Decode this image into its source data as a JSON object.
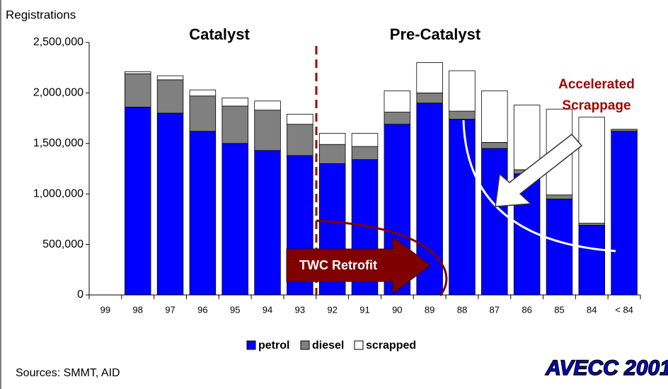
{
  "chart_data": {
    "type": "stacked_bar",
    "y_label": "Registrations",
    "categories": [
      "99",
      "98",
      "97",
      "96",
      "95",
      "94",
      "93",
      "92",
      "91",
      "90",
      "89",
      "88",
      "87",
      "86",
      "85",
      "84",
      "< 84"
    ],
    "series": [
      {
        "name": "petrol",
        "color": "#0000ff",
        "values": [
          null,
          1860000,
          1800000,
          1620000,
          1500000,
          1430000,
          1380000,
          1300000,
          1340000,
          1690000,
          1900000,
          1740000,
          1450000,
          1200000,
          950000,
          690000,
          1620000
        ]
      },
      {
        "name": "diesel",
        "color": "#808080",
        "values": [
          null,
          330000,
          330000,
          350000,
          370000,
          400000,
          310000,
          190000,
          130000,
          120000,
          100000,
          80000,
          60000,
          40000,
          40000,
          20000,
          20000
        ]
      },
      {
        "name": "scrapped",
        "color": "#ffffff",
        "values": [
          null,
          20000,
          40000,
          60000,
          80000,
          90000,
          100000,
          110000,
          130000,
          210000,
          300000,
          400000,
          510000,
          640000,
          850000,
          1050000,
          0
        ]
      }
    ],
    "ylim": [
      0,
      2500000
    ],
    "yticks": [
      0,
      {
        "value": 500000,
        "label": "500,000"
      },
      {
        "value": 1000000,
        "label": "1,000,000"
      },
      {
        "value": 1500000,
        "label": "1,500,000"
      },
      {
        "value": 2000000,
        "label": "2,000,000"
      },
      {
        "value": 2500000,
        "label": "2,500,000"
      }
    ],
    "legend": "bottom",
    "annotations": {
      "catalyst": "Catalyst",
      "pre_catalyst": "Pre-Catalyst",
      "scrappage": [
        "Accelerated",
        "Scrappage"
      ],
      "retrofit": "TWC Retrofit",
      "sources": "Sources: SMMT, AID",
      "logo": "AVECC 2001"
    }
  }
}
